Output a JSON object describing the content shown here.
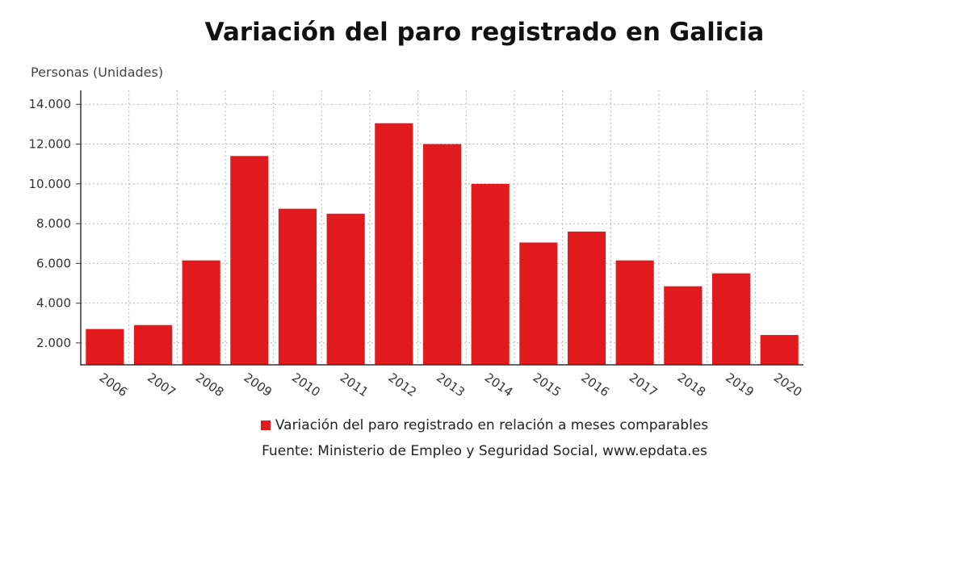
{
  "chart_data": {
    "type": "bar",
    "title": "Variación del paro registrado en Galicia",
    "ylabel": "Personas (Unidades)",
    "xlabel": "",
    "categories": [
      "2006",
      "2007",
      "2008",
      "2009",
      "2010",
      "2011",
      "2012",
      "2013",
      "2014",
      "2015",
      "2016",
      "2017",
      "2018",
      "2019",
      "2020"
    ],
    "series": [
      {
        "name": "Variación del paro registrado en relación a meses comparables",
        "values": [
          2700,
          2900,
          6150,
          11400,
          8750,
          8500,
          13050,
          12000,
          10000,
          7050,
          7600,
          6150,
          4850,
          5500,
          2400
        ],
        "color": "#e11b1d"
      }
    ],
    "ylim": [
      900,
      14700
    ],
    "yticks": [
      2000,
      4000,
      6000,
      8000,
      10000,
      12000,
      14000
    ],
    "ytick_labels": [
      "2.000",
      "4.000",
      "6.000",
      "8.000",
      "10.000",
      "12.000",
      "14.000"
    ],
    "grid": true,
    "legend_position": "bottom"
  },
  "source": "Fuente: Ministerio de Empleo y Seguridad Social, www.epdata.es"
}
